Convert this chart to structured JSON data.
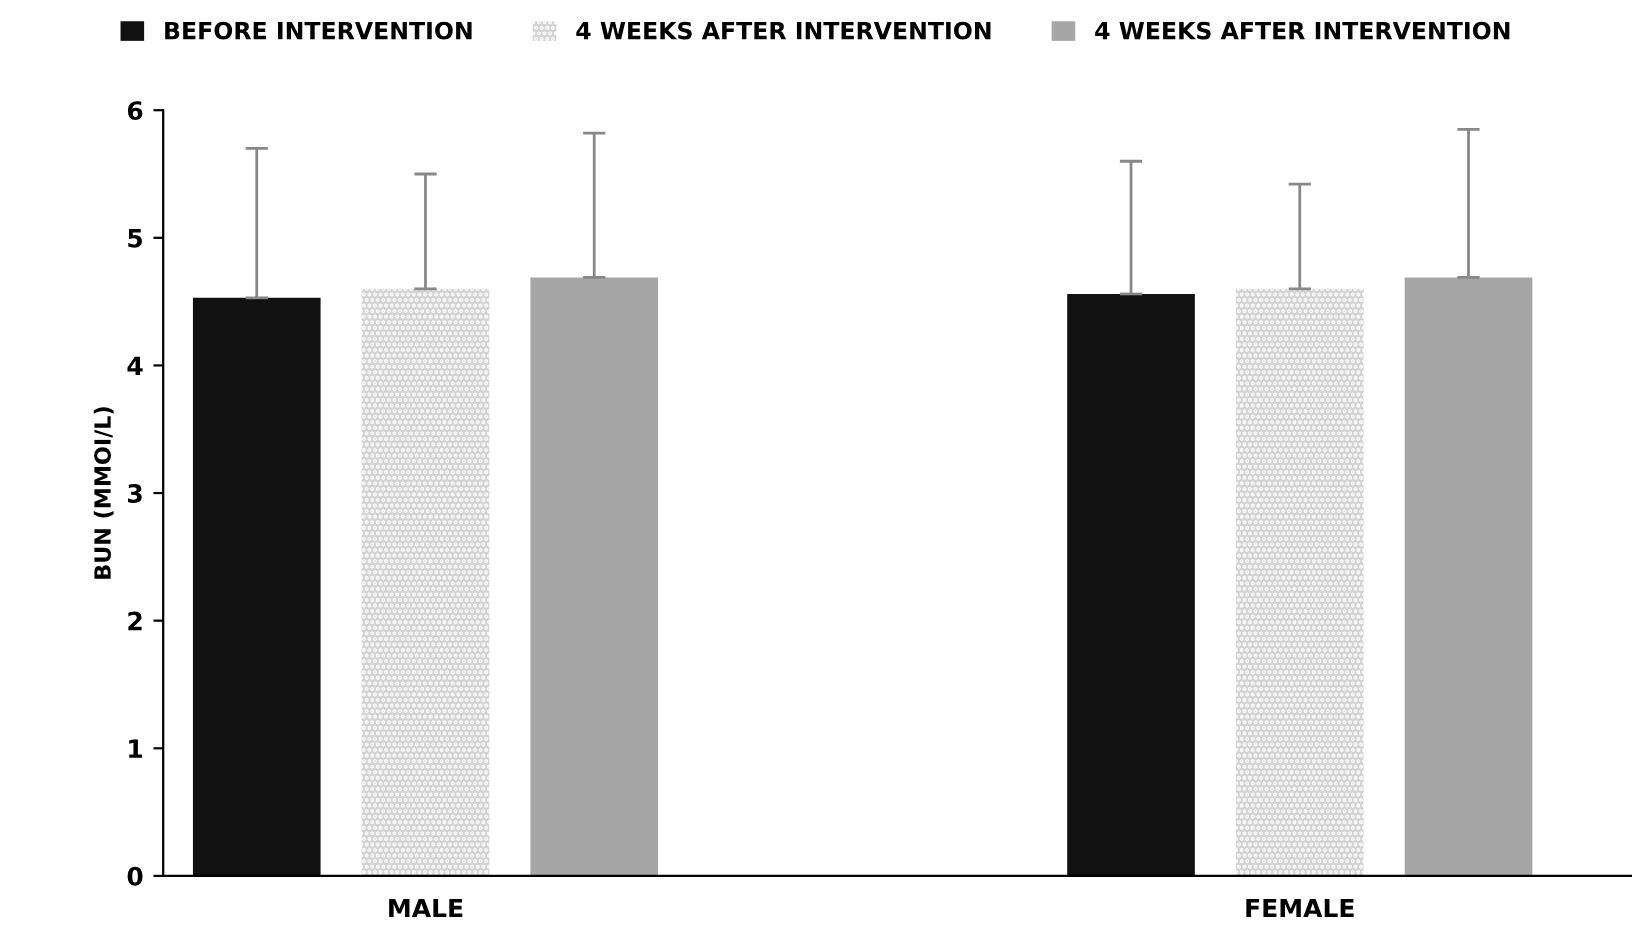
{
  "chart_data": {
    "type": "bar",
    "ylabel": "BUN (MMOI/L)",
    "categories": [
      "MALE",
      "FEMALE"
    ],
    "series": [
      {
        "name": "BEFORE INTERVENTION",
        "color": "#111111",
        "values": [
          4.53,
          4.56
        ],
        "errors": [
          [
            4.53,
            5.7
          ],
          [
            4.56,
            5.6
          ]
        ]
      },
      {
        "name": "4 WEEKS AFTER INTERVENTION",
        "color": "#d4d4d4",
        "values": [
          4.6,
          4.6
        ],
        "errors": [
          [
            4.6,
            5.5
          ],
          [
            4.6,
            5.42
          ]
        ]
      },
      {
        "name": "4 WEEKS AFTER INTERVENTION",
        "color": "#a6a6a6",
        "values": [
          4.69,
          4.69
        ],
        "errors": [
          [
            4.69,
            5.82
          ],
          [
            4.69,
            5.85
          ]
        ]
      }
    ],
    "ylim": [
      0,
      6
    ],
    "yticks": [
      0,
      1,
      2,
      3,
      4,
      5,
      6
    ],
    "grid": false,
    "legend": "top"
  }
}
